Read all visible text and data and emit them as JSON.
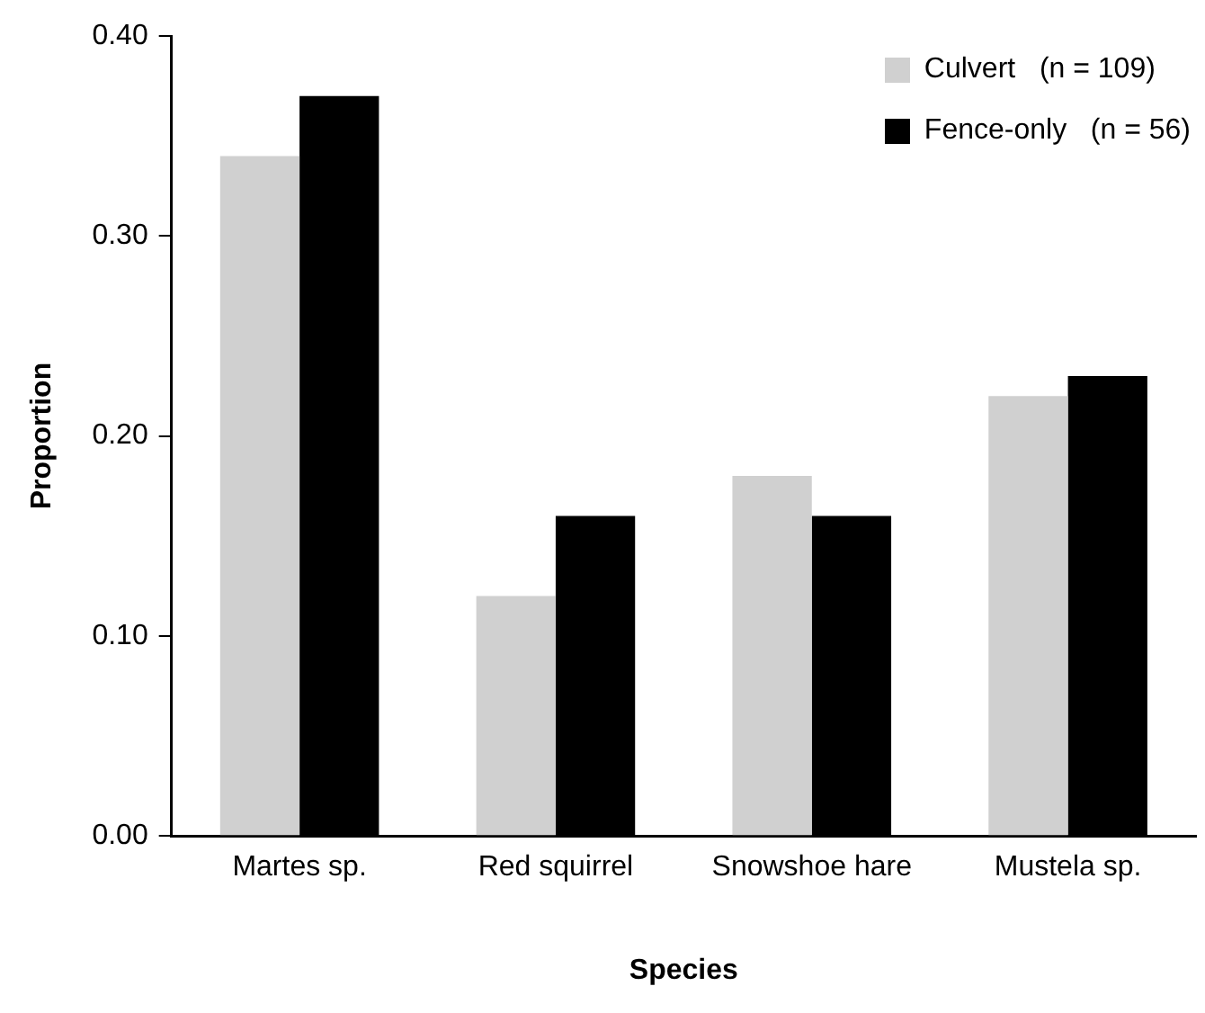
{
  "chart_data": {
    "type": "bar",
    "xlabel": "Species",
    "ylabel": "Proportion",
    "categories": [
      "Martes sp.",
      "Red squirrel",
      "Snowshoe hare",
      "Mustela sp."
    ],
    "series": [
      {
        "name": "Culvert   (n = 109)",
        "color": "#d0d0d0",
        "values": [
          0.34,
          0.12,
          0.18,
          0.22
        ]
      },
      {
        "name": "Fence-only   (n = 56)",
        "color": "#000000",
        "values": [
          0.37,
          0.16,
          0.16,
          0.23
        ]
      }
    ],
    "ylim": [
      0,
      0.4
    ],
    "yticks": [
      {
        "value": 0,
        "label": "0.00"
      },
      {
        "value": 0.1,
        "label": "0.10"
      },
      {
        "value": 0.2,
        "label": "0.20"
      },
      {
        "value": 0.3,
        "label": "0.30"
      },
      {
        "value": 0.4,
        "label": "0.40"
      }
    ],
    "grid": false,
    "legend": "top right"
  }
}
